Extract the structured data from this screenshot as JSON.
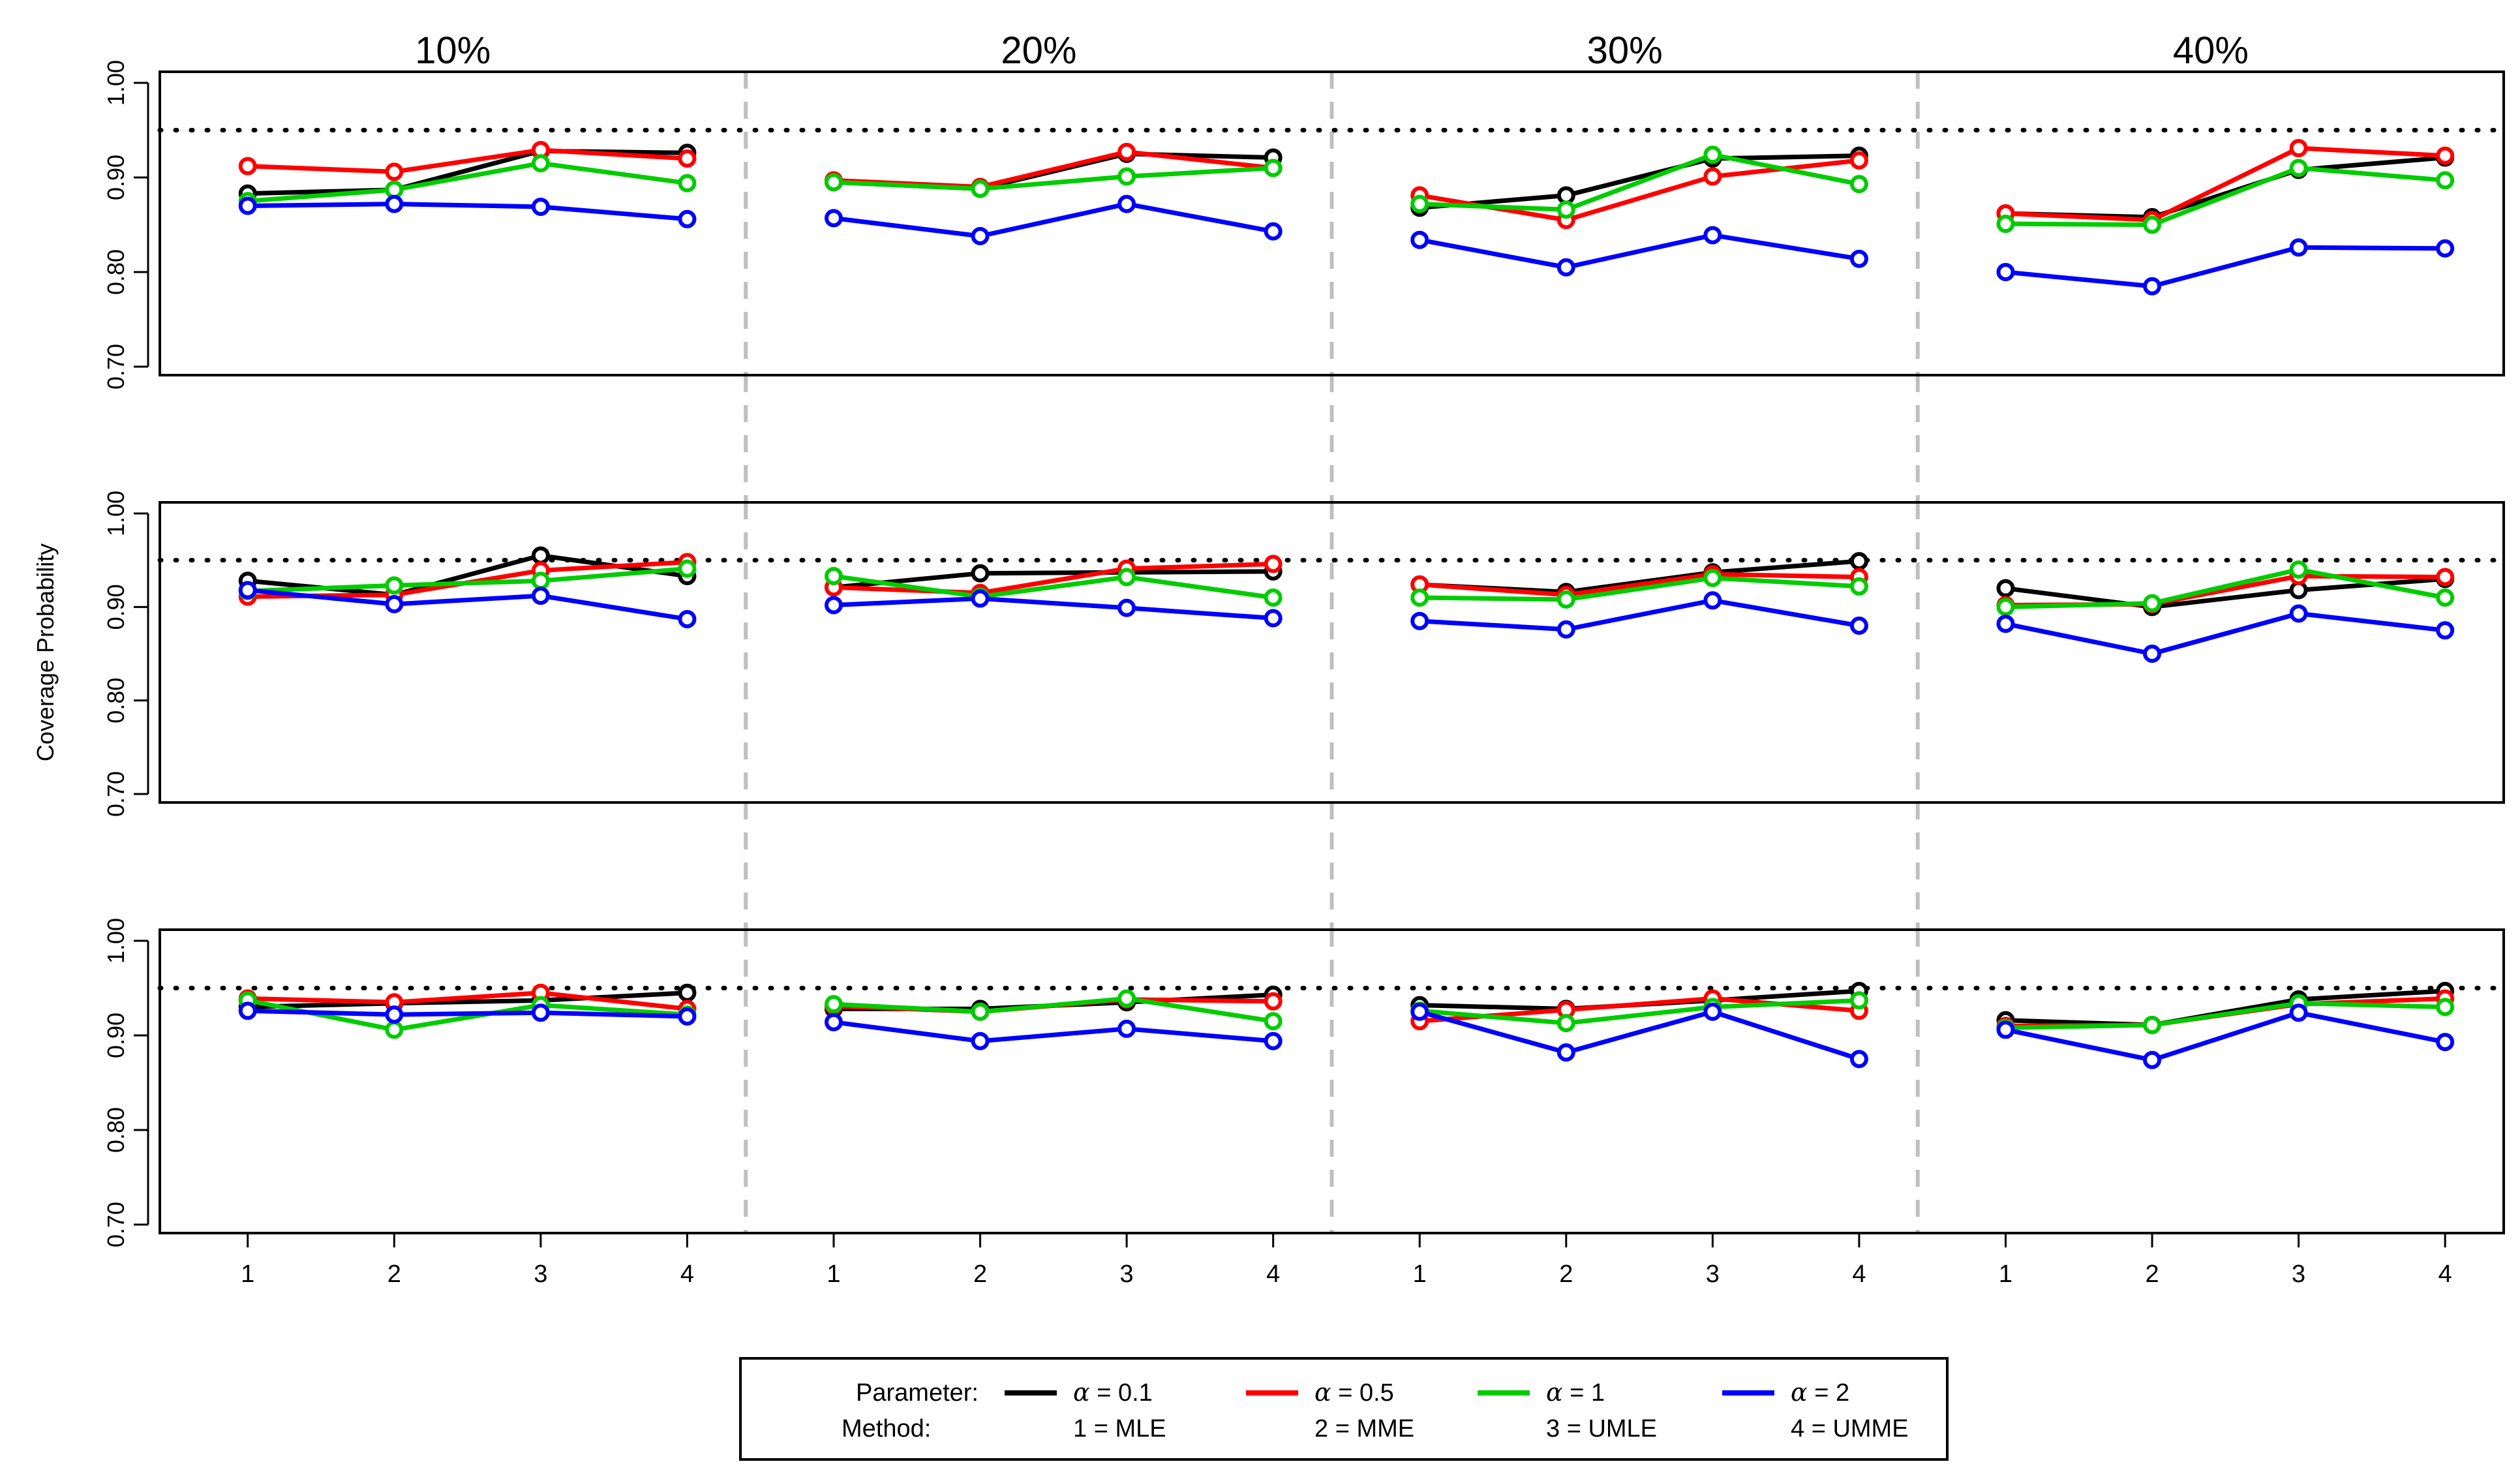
{
  "chart_data": {
    "type": "line",
    "ylabel": "Coverage Probability",
    "ylim": [
      0.7,
      1.0
    ],
    "yticks": [
      "0.70",
      "0.80",
      "0.90",
      "1.00"
    ],
    "reference_line": 0.95,
    "panel_titles": [
      "10%",
      "20%",
      "30%",
      "40%"
    ],
    "categories": [
      "1",
      "2",
      "3",
      "4"
    ],
    "colors": {
      "a01": "#000000",
      "a05": "#ff0000",
      "a1": "#00cc00",
      "a2": "#0000ff",
      "separator": "#bfbfbf"
    },
    "rows": [
      {
        "series": [
          {
            "name": "α = 0.1",
            "color": "#000000",
            "panels": [
              [
                0.883,
                0.887,
                0.928,
                0.926
              ],
              [
                0.895,
                0.888,
                0.925,
                0.921
              ],
              [
                0.868,
                0.881,
                0.92,
                0.923
              ],
              [
                0.862,
                0.858,
                0.908,
                0.921
              ]
            ]
          },
          {
            "name": "α = 0.5",
            "color": "#ff0000",
            "panels": [
              [
                0.912,
                0.906,
                0.929,
                0.92
              ],
              [
                0.897,
                0.89,
                0.927,
                0.91
              ],
              [
                0.881,
                0.855,
                0.901,
                0.918
              ],
              [
                0.862,
                0.855,
                0.931,
                0.923
              ]
            ]
          },
          {
            "name": "α = 1",
            "color": "#00cc00",
            "panels": [
              [
                0.875,
                0.887,
                0.915,
                0.894
              ],
              [
                0.895,
                0.888,
                0.901,
                0.91
              ],
              [
                0.872,
                0.866,
                0.924,
                0.893
              ],
              [
                0.851,
                0.85,
                0.91,
                0.897
              ]
            ]
          },
          {
            "name": "α = 2",
            "color": "#0000ff",
            "panels": [
              [
                0.87,
                0.872,
                0.869,
                0.856
              ],
              [
                0.857,
                0.838,
                0.872,
                0.843
              ],
              [
                0.834,
                0.805,
                0.839,
                0.814
              ],
              [
                0.8,
                0.785,
                0.826,
                0.825
              ]
            ]
          }
        ]
      },
      {
        "series": [
          {
            "name": "α = 0.1",
            "color": "#000000",
            "panels": [
              [
                0.928,
                0.913,
                0.955,
                0.933
              ],
              [
                0.921,
                0.936,
                0.937,
                0.938
              ],
              [
                0.924,
                0.916,
                0.937,
                0.949
              ],
              [
                0.92,
                0.9,
                0.918,
                0.93
              ]
            ]
          },
          {
            "name": "α = 0.5",
            "color": "#ff0000",
            "panels": [
              [
                0.911,
                0.913,
                0.939,
                0.948
              ],
              [
                0.921,
                0.915,
                0.941,
                0.946
              ],
              [
                0.924,
                0.913,
                0.935,
                0.932
              ],
              [
                0.902,
                0.903,
                0.933,
                0.932
              ]
            ]
          },
          {
            "name": "α = 1",
            "color": "#00cc00",
            "panels": [
              [
                0.917,
                0.923,
                0.928,
                0.941
              ],
              [
                0.933,
                0.911,
                0.932,
                0.91
              ],
              [
                0.91,
                0.908,
                0.931,
                0.922
              ],
              [
                0.9,
                0.904,
                0.94,
                0.91
              ]
            ]
          },
          {
            "name": "α = 2",
            "color": "#0000ff",
            "panels": [
              [
                0.918,
                0.903,
                0.912,
                0.887
              ],
              [
                0.902,
                0.909,
                0.899,
                0.888
              ],
              [
                0.885,
                0.876,
                0.907,
                0.88
              ],
              [
                0.882,
                0.85,
                0.893,
                0.875
              ]
            ]
          }
        ]
      },
      {
        "series": [
          {
            "name": "α = 0.1",
            "color": "#000000",
            "panels": [
              [
                0.93,
                0.934,
                0.937,
                0.945
              ],
              [
                0.928,
                0.928,
                0.935,
                0.943
              ],
              [
                0.932,
                0.928,
                0.937,
                0.947
              ],
              [
                0.916,
                0.911,
                0.938,
                0.947
              ]
            ]
          },
          {
            "name": "α = 0.5",
            "color": "#ff0000",
            "panels": [
              [
                0.939,
                0.935,
                0.945,
                0.928
              ],
              [
                0.931,
                0.925,
                0.938,
                0.936
              ],
              [
                0.915,
                0.927,
                0.939,
                0.926
              ],
              [
                0.91,
                0.911,
                0.933,
                0.939
              ]
            ]
          },
          {
            "name": "α = 1",
            "color": "#00cc00",
            "panels": [
              [
                0.937,
                0.906,
                0.932,
                0.922
              ],
              [
                0.933,
                0.925,
                0.939,
                0.915
              ],
              [
                0.926,
                0.913,
                0.93,
                0.937
              ],
              [
                0.908,
                0.911,
                0.934,
                0.93
              ]
            ]
          },
          {
            "name": "α = 2",
            "color": "#0000ff",
            "panels": [
              [
                0.926,
                0.922,
                0.924,
                0.92
              ],
              [
                0.914,
                0.894,
                0.907,
                0.894
              ],
              [
                0.925,
                0.882,
                0.925,
                0.875
              ],
              [
                0.906,
                0.874,
                0.924,
                0.893
              ]
            ]
          }
        ]
      }
    ],
    "legend": {
      "parameter_label": "Parameter:",
      "method_label": "Method:",
      "entries": [
        {
          "symbol": "α",
          "value": "0.1",
          "method": "1 = MLE",
          "color": "#000000"
        },
        {
          "symbol": "α",
          "value": "0.5",
          "method": "2 = MME",
          "color": "#ff0000"
        },
        {
          "symbol": "α",
          "value": "1",
          "method": "3 = UMLE",
          "color": "#00cc00"
        },
        {
          "symbol": "α",
          "value": "2",
          "method": "4 = UMME",
          "color": "#0000ff"
        }
      ]
    }
  }
}
